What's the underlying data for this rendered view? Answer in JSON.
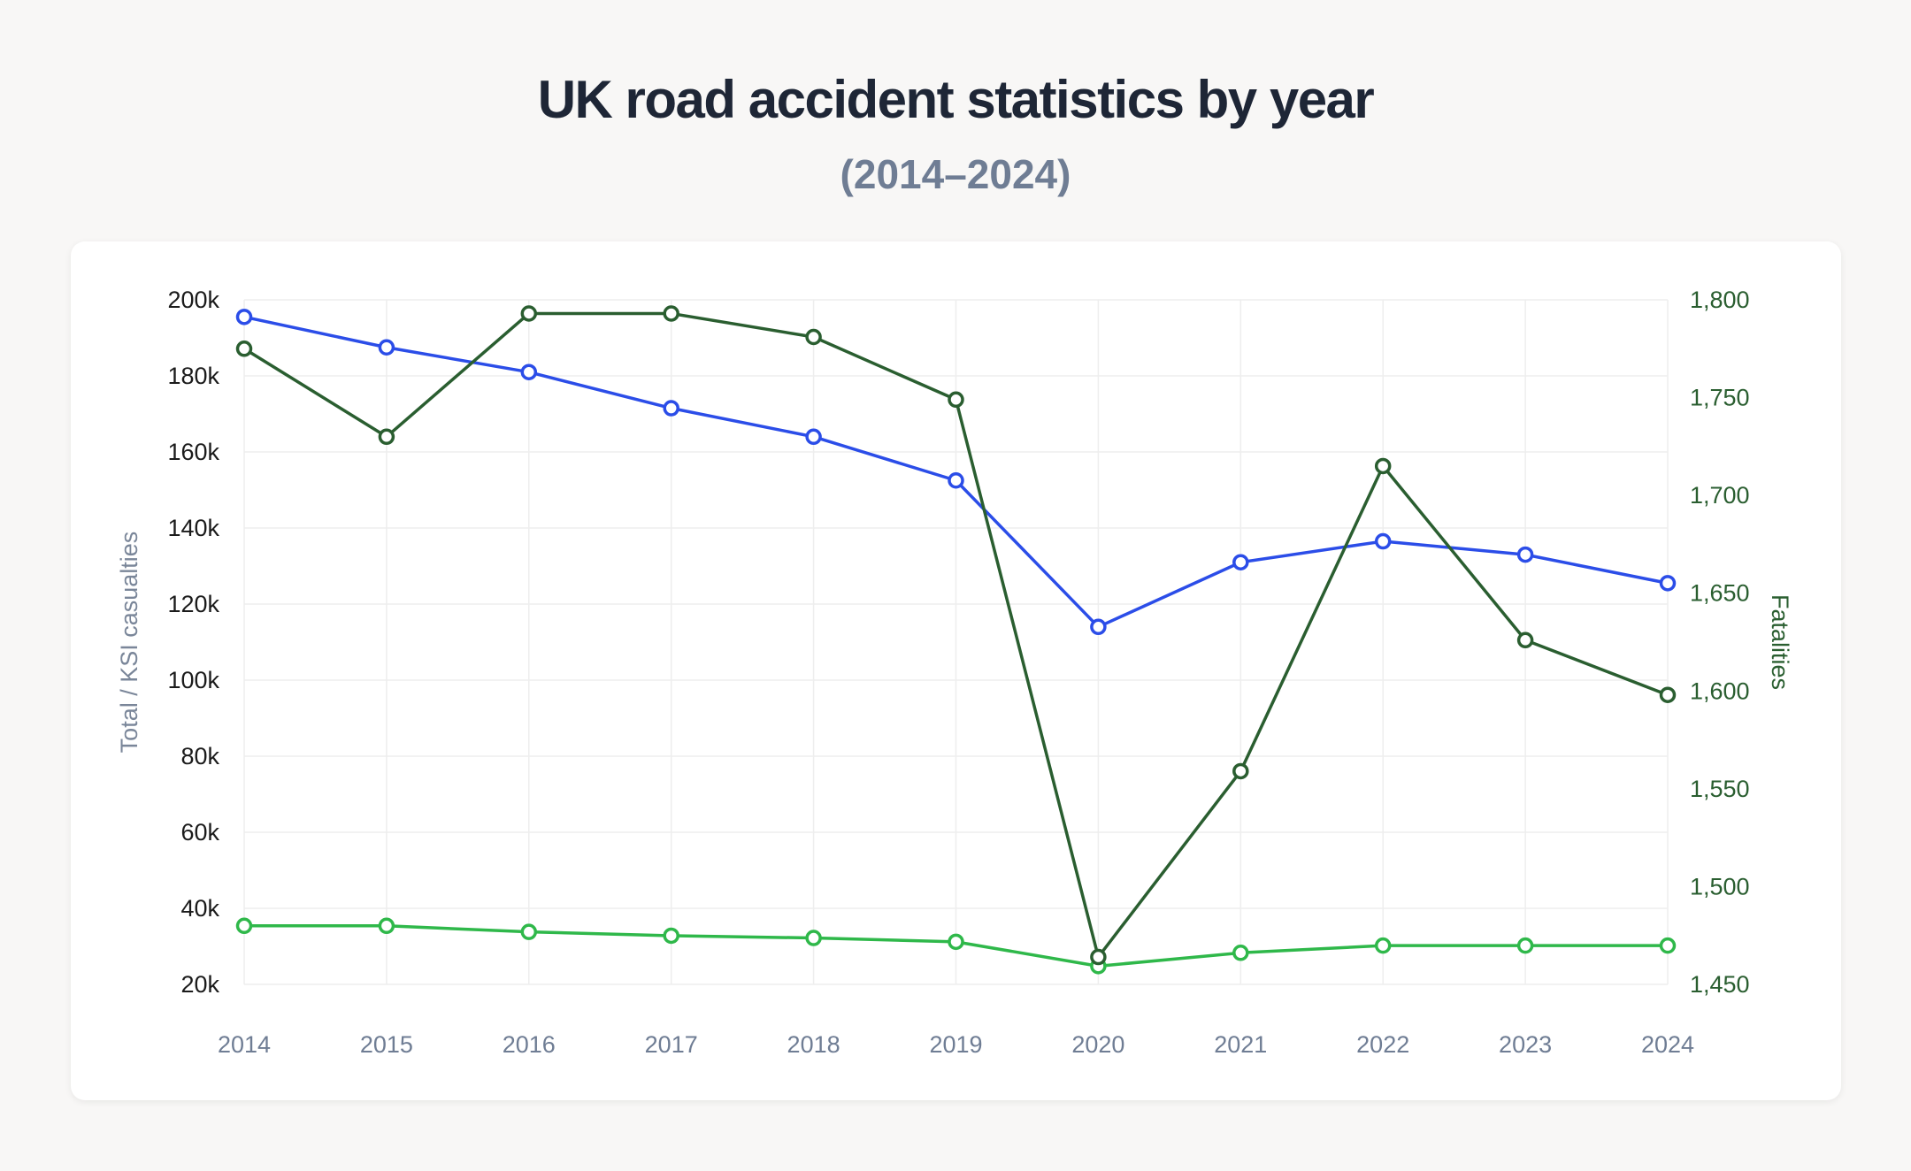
{
  "chart_data": {
    "type": "line",
    "title": "UK road accident statistics by year",
    "subtitle": "(2014–2024)",
    "x": [
      "2014",
      "2015",
      "2016",
      "2017",
      "2018",
      "2019",
      "2020",
      "2021",
      "2022",
      "2023",
      "2024"
    ],
    "y_left": {
      "label": "Total / KSI casualties",
      "range": [
        20000,
        200000
      ],
      "ticks": [
        20000,
        40000,
        60000,
        80000,
        100000,
        120000,
        140000,
        160000,
        180000,
        200000
      ],
      "tick_labels": [
        "20k",
        "40k",
        "60k",
        "80k",
        "100k",
        "120k",
        "140k",
        "160k",
        "180k",
        "200k"
      ]
    },
    "y_right": {
      "label": "Fatalities",
      "range": [
        1450,
        1800
      ],
      "ticks": [
        1450,
        1500,
        1550,
        1600,
        1650,
        1700,
        1750,
        1800
      ],
      "tick_labels": [
        "1,450",
        "1,500",
        "1,550",
        "1,600",
        "1,650",
        "1,700",
        "1,750",
        "1,800"
      ]
    },
    "grid": true,
    "legend": "none",
    "series": [
      {
        "axis": "left",
        "color": "#2b4de8",
        "values": [
          195500,
          187500,
          181000,
          171500,
          164000,
          152500,
          114000,
          131000,
          136500,
          133000,
          125500
        ]
      },
      {
        "axis": "left",
        "color": "#2fb84a",
        "values": [
          35400,
          35400,
          33800,
          32800,
          32200,
          31200,
          24800,
          28300,
          30200,
          30200,
          30200
        ]
      },
      {
        "axis": "right",
        "color": "#2a5e30",
        "values": [
          1775,
          1730,
          1793,
          1793,
          1781,
          1749,
          1464,
          1559,
          1715,
          1626,
          1598
        ]
      }
    ]
  }
}
